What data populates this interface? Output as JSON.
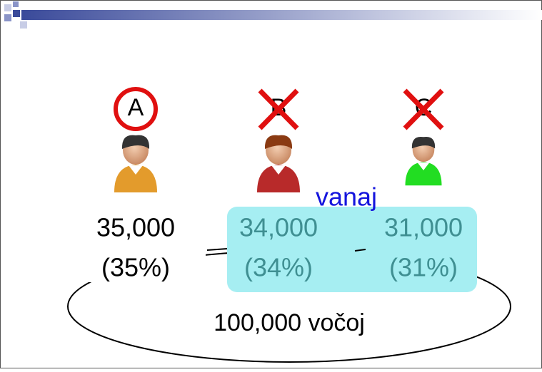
{
  "candidates": [
    {
      "label": "A",
      "votes": "35,000",
      "share": "(35%)"
    },
    {
      "label": "B",
      "votes": "34,000",
      "share": "(34%)"
    },
    {
      "label": "C",
      "votes": "31,000",
      "share": "(31%)"
    }
  ],
  "group_label": "vanaj",
  "total": "100,000 vočoj"
}
